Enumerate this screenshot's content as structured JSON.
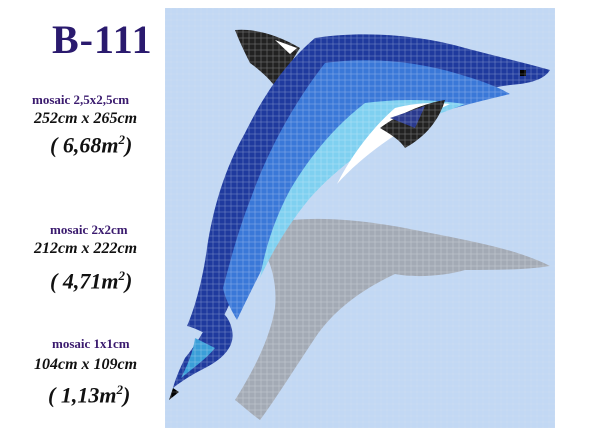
{
  "title": "B-111",
  "specs": [
    {
      "label": "mosaic 2,5x2,5cm",
      "size": "252cm x 265cm",
      "area": "( 6,68m",
      "area_sup": "2",
      "area_end": ")"
    },
    {
      "label": "mosaic 2x2cm",
      "size": "212cm x 222cm",
      "area": "( 4,71m",
      "area_sup": "2",
      "area_end": ")"
    },
    {
      "label": "mosaic 1x1cm",
      "size": "104cm x 109cm",
      "area": "( 1,13m",
      "area_sup": "2",
      "area_end": ")"
    }
  ],
  "colors": {
    "background_tiles": "#b8d0ef",
    "dolphin_dark": "#1f3a9e",
    "dolphin_mid": "#3a78d8",
    "dolphin_light": "#7fd0f0",
    "dolphin_white": "#ffffff",
    "fin_black": "#222222",
    "shadow": "#a0a8b4"
  }
}
